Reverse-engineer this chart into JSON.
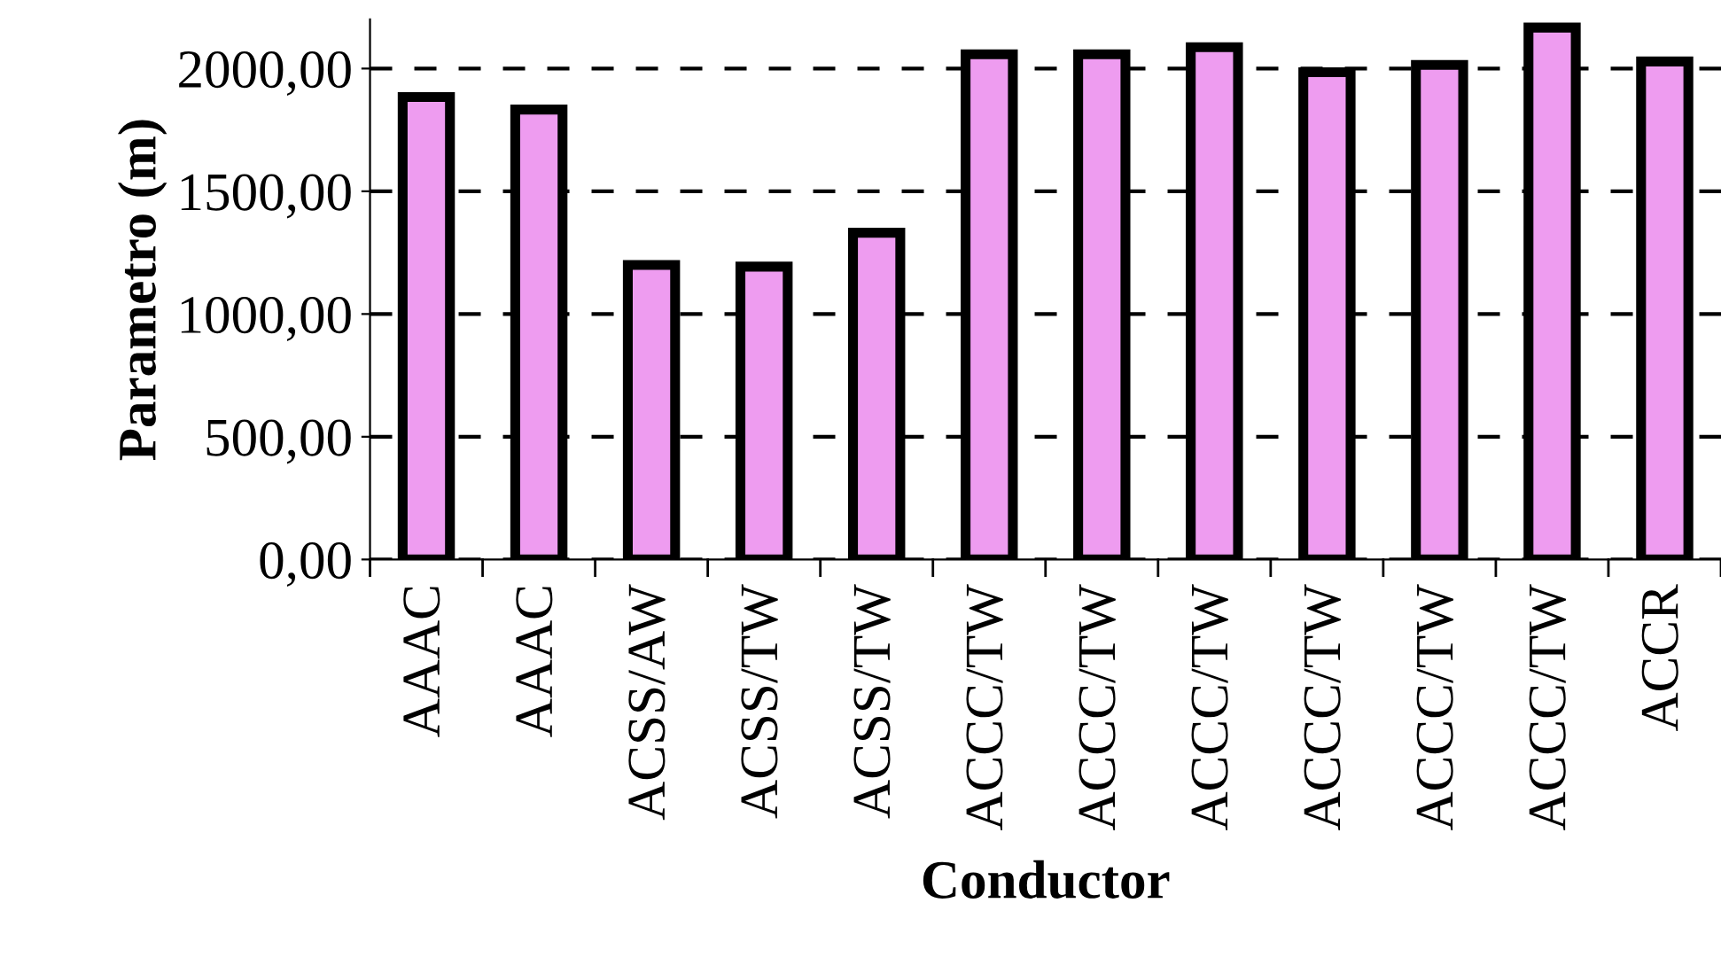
{
  "chart_data": {
    "type": "bar",
    "xlabel": "Conductor",
    "ylabel": "Parametro (m)",
    "categories": [
      "AAAC",
      "AAAC",
      "ACSS/AW",
      "ACSS/TW",
      "ACSS/TW",
      "ACCC/TW",
      "ACCC/TW",
      "ACCC/TW",
      "ACCC/TW",
      "ACCC/TW",
      "ACCC/TW",
      "ACCR"
    ],
    "values": [
      1884,
      1833,
      1200,
      1193,
      1331,
      2058,
      2058,
      2087,
      1985,
      2015,
      2167,
      2029
    ],
    "color": "#ee9cf0",
    "ylim": [
      0,
      2200
    ],
    "yticks": [
      {
        "value": 0,
        "label": "0,00"
      },
      {
        "value": 500,
        "label": "500,00"
      },
      {
        "value": 1000,
        "label": "1000,00"
      },
      {
        "value": 1500,
        "label": "1500,00"
      },
      {
        "value": 2000,
        "label": "2000,00"
      }
    ],
    "grid": "y",
    "line_style": "dashed"
  }
}
